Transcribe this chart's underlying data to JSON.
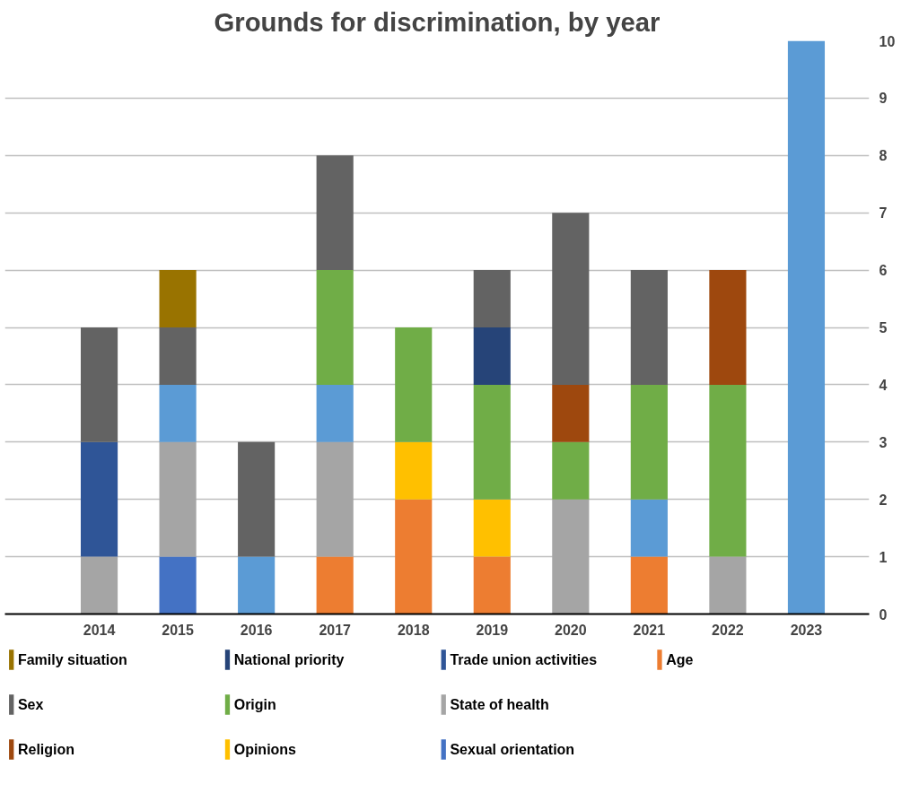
{
  "chart_data": {
    "type": "bar",
    "title": "Grounds for discrimination, by year",
    "stacked": true,
    "categories": [
      "2014",
      "2015",
      "2016",
      "2017",
      "2018",
      "2019",
      "2020",
      "2021",
      "2022",
      "2023"
    ],
    "series": [
      {
        "name": "Age",
        "color": "#ed7d31",
        "values": [
          null,
          null,
          null,
          1,
          2,
          1,
          null,
          1,
          null,
          null
        ]
      },
      {
        "name": "Sexual orientation",
        "color": "#4472c4",
        "values": [
          null,
          1,
          null,
          null,
          null,
          null,
          null,
          null,
          null,
          null
        ]
      },
      {
        "name": "State of health",
        "color": "#a5a5a5",
        "values": [
          1,
          2,
          null,
          2,
          null,
          null,
          2,
          null,
          1,
          null
        ]
      },
      {
        "name": "Trade union activities",
        "color": "#2f5597",
        "values": [
          2,
          null,
          null,
          null,
          null,
          null,
          null,
          null,
          null,
          null
        ]
      },
      {
        "name": "Opinions",
        "color": "#ffc000",
        "values": [
          null,
          null,
          null,
          null,
          1,
          1,
          null,
          null,
          null,
          null
        ]
      },
      {
        "color": "#5b9bd5",
        "values": [
          null,
          1,
          1,
          1,
          null,
          null,
          null,
          1,
          null,
          10
        ]
      },
      {
        "name": "Origin",
        "color": "#70ad47",
        "values": [
          null,
          null,
          null,
          2,
          2,
          2,
          1,
          2,
          3,
          null
        ]
      },
      {
        "name": "National priority",
        "color": "#264478",
        "values": [
          null,
          null,
          null,
          null,
          null,
          1,
          null,
          null,
          null,
          null
        ]
      },
      {
        "name": "Religion",
        "color": "#9e480e",
        "values": [
          null,
          null,
          null,
          null,
          null,
          null,
          1,
          null,
          2,
          null
        ]
      },
      {
        "name": "Sex",
        "color": "#636363",
        "values": [
          2,
          1,
          2,
          2,
          null,
          1,
          3,
          2,
          null,
          null
        ]
      },
      {
        "name": "Family situation",
        "color": "#997300",
        "values": [
          null,
          1,
          null,
          null,
          null,
          null,
          null,
          null,
          null,
          null
        ]
      }
    ],
    "ylim": [
      0,
      10
    ],
    "yticks": [
      0,
      1,
      2,
      3,
      4,
      5,
      6,
      7,
      8,
      9,
      10
    ],
    "grid": "y",
    "legend": "bottom"
  }
}
